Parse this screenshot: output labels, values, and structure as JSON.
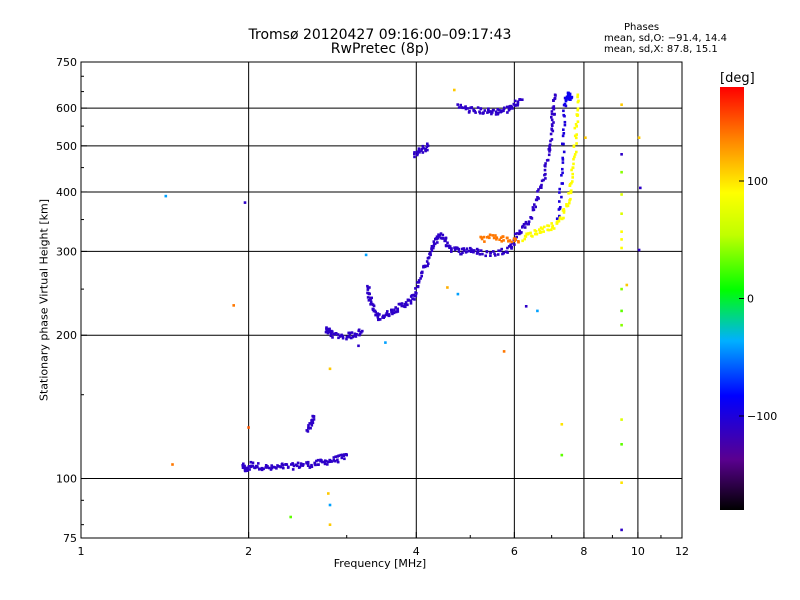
{
  "header": {
    "title": "Tromsø 20120427 09:16:00–09:17:43",
    "subtitle": "RwPretec (8p)",
    "phases_heading": "Phases",
    "phases_o": "mean, sd,O: −91.4, 14.4",
    "phases_x": "mean, sd,X:  87.8, 15.1"
  },
  "colorbar": {
    "unit": "[deg]",
    "tick_labels": [
      "100",
      "0",
      "−100"
    ],
    "tick_values": [
      100,
      0,
      -100
    ],
    "range": [
      -180,
      180
    ]
  },
  "chart_data": {
    "type": "scatter",
    "title": "Tromsø 20120427 09:16:00–09:17:43",
    "subtitle": "RwPretec (8p)",
    "xlabel": "Frequency [MHz]",
    "ylabel": "Stationary phase Virtual Height [km]",
    "xscale": "log",
    "yscale": "log",
    "xlim": [
      1,
      12
    ],
    "ylim": [
      75,
      750
    ],
    "xticks": [
      1,
      2,
      4,
      6,
      8,
      10,
      12
    ],
    "xtick_labels": [
      "1",
      "2",
      "4",
      "6",
      "8",
      "10",
      "12"
    ],
    "yticks": [
      75,
      100,
      200,
      300,
      400,
      500,
      600,
      750
    ],
    "ytick_labels": [
      "75",
      "100",
      "200",
      "300",
      "400",
      "500",
      "600",
      "750"
    ],
    "grid": true,
    "traces": [
      {
        "name": "",
        "color_phase": -110,
        "x": [
          1.95,
          1.98,
          2.02,
          2.1,
          2.2,
          2.3,
          2.4,
          2.5,
          2.6,
          2.7,
          2.8,
          2.9,
          3.0
        ],
        "y": [
          106,
          104,
          107,
          106,
          105,
          106,
          106,
          107,
          107,
          108,
          109,
          110,
          112
        ]
      },
      {
        "name": "",
        "color_phase": -110,
        "x": [
          2.55,
          2.6,
          2.62
        ],
        "y": [
          125,
          132,
          135
        ]
      },
      {
        "name": "",
        "color_phase": -110,
        "x": [
          2.75,
          2.8,
          2.85,
          3.0,
          3.1,
          3.2
        ],
        "y": [
          206,
          203,
          200,
          199,
          201,
          204
        ]
      },
      {
        "name": "",
        "color_phase": -110,
        "x": [
          3.28,
          3.3,
          3.35,
          3.4,
          3.5,
          3.6,
          3.7,
          3.8,
          3.9,
          4.0
        ],
        "y": [
          252,
          240,
          228,
          218,
          220,
          224,
          228,
          232,
          236,
          245
        ]
      },
      {
        "name": "",
        "color_phase": -110,
        "x": [
          4.0,
          4.1,
          4.2,
          4.3,
          4.4,
          4.5,
          4.6,
          4.8,
          5.0,
          5.2,
          5.5,
          5.8,
          6.0
        ],
        "y": [
          252,
          270,
          290,
          310,
          325,
          318,
          305,
          300,
          303,
          298,
          297,
          302,
          310
        ]
      },
      {
        "name": "",
        "color_phase": -110,
        "x": [
          6.0,
          6.2,
          6.4,
          6.6,
          6.8,
          6.9,
          7.0,
          7.05,
          7.1
        ],
        "y": [
          320,
          335,
          350,
          390,
          430,
          480,
          540,
          590,
          640
        ]
      },
      {
        "name": "",
        "color_phase": -100,
        "x": [
          7.2,
          7.3,
          7.35,
          7.4
        ],
        "y": [
          350,
          420,
          520,
          630
        ]
      },
      {
        "name": "",
        "color_phase": -110,
        "x": [
          4.75,
          5.0,
          5.2,
          5.4,
          5.6,
          5.8,
          6.0,
          6.2
        ],
        "y": [
          605,
          595,
          593,
          590,
          590,
          595,
          610,
          625
        ]
      },
      {
        "name": "",
        "color_phase": -110,
        "x": [
          3.95,
          4.1,
          4.2
        ],
        "y": [
          480,
          490,
          500
        ]
      },
      {
        "name": "",
        "color_phase": 90,
        "x": [
          6.2,
          6.5,
          6.8,
          7.1,
          7.3,
          7.5,
          7.6,
          7.7,
          7.75,
          7.8
        ],
        "y": [
          320,
          328,
          335,
          340,
          355,
          380,
          420,
          480,
          560,
          640
        ]
      },
      {
        "name": "",
        "color_phase": 140,
        "x": [
          5.2,
          5.5,
          5.8,
          6.1
        ],
        "y": [
          318,
          322,
          318,
          315
        ]
      },
      {
        "name": "",
        "color_phase": -90,
        "x": [
          7.4,
          7.5,
          7.6
        ],
        "y": [
          620,
          640,
          630
        ]
      }
    ],
    "scatter_points": [
      {
        "x": 1.42,
        "y": 392,
        "phase": -40
      },
      {
        "x": 1.97,
        "y": 380,
        "phase": -110
      },
      {
        "x": 1.88,
        "y": 231,
        "phase": 140
      },
      {
        "x": 1.46,
        "y": 107,
        "phase": 140
      },
      {
        "x": 2.0,
        "y": 128,
        "phase": 150
      },
      {
        "x": 2.38,
        "y": 83,
        "phase": 30
      },
      {
        "x": 2.8,
        "y": 170,
        "phase": 110
      },
      {
        "x": 2.78,
        "y": 93,
        "phase": 110
      },
      {
        "x": 2.8,
        "y": 88,
        "phase": -40
      },
      {
        "x": 2.8,
        "y": 80,
        "phase": 110
      },
      {
        "x": 3.25,
        "y": 295,
        "phase": -40
      },
      {
        "x": 3.52,
        "y": 193,
        "phase": -40
      },
      {
        "x": 3.15,
        "y": 190,
        "phase": -110
      },
      {
        "x": 4.55,
        "y": 252,
        "phase": 120
      },
      {
        "x": 4.75,
        "y": 244,
        "phase": -40
      },
      {
        "x": 4.68,
        "y": 655,
        "phase": 110
      },
      {
        "x": 5.75,
        "y": 185,
        "phase": 140
      },
      {
        "x": 6.3,
        "y": 230,
        "phase": -110
      },
      {
        "x": 6.6,
        "y": 225,
        "phase": -40
      },
      {
        "x": 7.3,
        "y": 130,
        "phase": 100
      },
      {
        "x": 7.3,
        "y": 112,
        "phase": 30
      },
      {
        "x": 8.05,
        "y": 520,
        "phase": 110
      },
      {
        "x": 9.35,
        "y": 610,
        "phase": 110
      },
      {
        "x": 9.35,
        "y": 480,
        "phase": -110
      },
      {
        "x": 9.35,
        "y": 440,
        "phase": 40
      },
      {
        "x": 9.35,
        "y": 395,
        "phase": 70
      },
      {
        "x": 9.35,
        "y": 360,
        "phase": 70
      },
      {
        "x": 9.35,
        "y": 330,
        "phase": 90
      },
      {
        "x": 9.35,
        "y": 318,
        "phase": 90
      },
      {
        "x": 9.35,
        "y": 305,
        "phase": 90
      },
      {
        "x": 9.35,
        "y": 250,
        "phase": 40
      },
      {
        "x": 9.35,
        "y": 225,
        "phase": 30
      },
      {
        "x": 9.35,
        "y": 210,
        "phase": 40
      },
      {
        "x": 9.35,
        "y": 133,
        "phase": 70
      },
      {
        "x": 9.35,
        "y": 118,
        "phase": 30
      },
      {
        "x": 9.35,
        "y": 98,
        "phase": 100
      },
      {
        "x": 9.35,
        "y": 78,
        "phase": -110
      },
      {
        "x": 9.55,
        "y": 255,
        "phase": 110
      },
      {
        "x": 10.05,
        "y": 520,
        "phase": 110
      },
      {
        "x": 10.1,
        "y": 408,
        "phase": -110
      },
      {
        "x": 10.05,
        "y": 302,
        "phase": -110
      }
    ]
  }
}
